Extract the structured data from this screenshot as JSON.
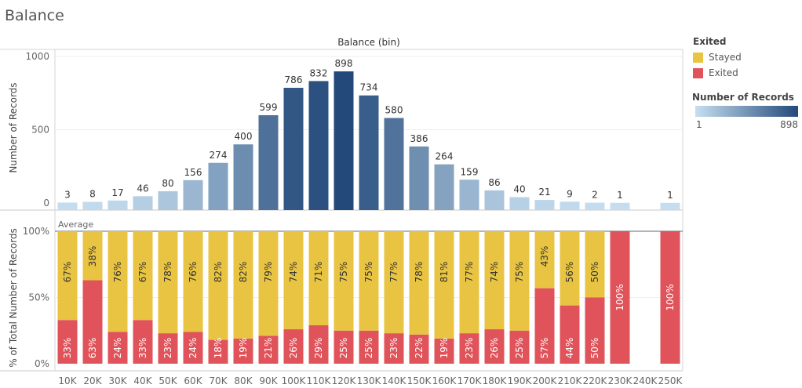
{
  "page_title": "Balance",
  "legend": {
    "title": "Exited",
    "items": [
      {
        "label": "Stayed",
        "color": "#e9c442"
      },
      {
        "label": "Exited",
        "color": "#e0535a"
      }
    ],
    "ramp_title": "Number of Records",
    "ramp_min": "1",
    "ramp_max": "898",
    "ramp_colors": [
      "#c6def0",
      "#23497a"
    ]
  },
  "chart_data": [
    {
      "type": "bar",
      "title": "Balance (bin)",
      "xlabel": "Balance (bin)",
      "ylabel": "Number of Records",
      "ylim": [
        0,
        1000
      ],
      "yticks": [
        "0",
        "500",
        "1000"
      ],
      "categories": [
        "10K",
        "20K",
        "30K",
        "40K",
        "50K",
        "60K",
        "70K",
        "80K",
        "90K",
        "100K",
        "110K",
        "120K",
        "130K",
        "140K",
        "150K",
        "160K",
        "170K",
        "180K",
        "190K",
        "200K",
        "210K",
        "220K",
        "230K",
        "240K",
        "250K"
      ],
      "values": [
        3,
        8,
        17,
        46,
        80,
        156,
        274,
        400,
        599,
        786,
        832,
        898,
        734,
        580,
        386,
        264,
        159,
        86,
        40,
        21,
        9,
        2,
        1,
        null,
        1
      ],
      "labels": [
        "3",
        "8",
        "17",
        "46",
        "80",
        "156",
        "274",
        "400",
        "599",
        "786",
        "832",
        "898",
        "734",
        "580",
        "386",
        "264",
        "159",
        "86",
        "40",
        "21",
        "9",
        "2",
        "1",
        "",
        "1"
      ],
      "color_scale": "sequential blue by Number of Records",
      "grid": true
    },
    {
      "type": "bar",
      "stacked": true,
      "ylabel": "% of Total Number of Records",
      "ylim": [
        0,
        100
      ],
      "yticks": [
        "0%",
        "50%",
        "100%"
      ],
      "reference_line": {
        "label": "Average",
        "value": 100
      },
      "categories": [
        "10K",
        "20K",
        "30K",
        "40K",
        "50K",
        "60K",
        "70K",
        "80K",
        "90K",
        "100K",
        "110K",
        "120K",
        "130K",
        "140K",
        "150K",
        "160K",
        "170K",
        "180K",
        "190K",
        "200K",
        "210K",
        "220K",
        "230K",
        "240K",
        "250K"
      ],
      "series": [
        {
          "name": "Exited",
          "color": "#e0535a",
          "values": [
            33,
            63,
            24,
            33,
            23,
            24,
            18,
            19,
            21,
            26,
            29,
            25,
            25,
            23,
            22,
            19,
            23,
            26,
            25,
            57,
            44,
            50,
            100,
            null,
            100
          ],
          "labels": [
            "33%",
            "63%",
            "24%",
            "33%",
            "23%",
            "24%",
            "18%",
            "19%",
            "21%",
            "26%",
            "29%",
            "25%",
            "25%",
            "23%",
            "22%",
            "19%",
            "23%",
            "26%",
            "25%",
            "57%",
            "44%",
            "50%",
            "100%",
            "",
            "100%"
          ]
        },
        {
          "name": "Stayed",
          "color": "#e9c442",
          "values": [
            67,
            38,
            76,
            67,
            78,
            76,
            82,
            82,
            79,
            74,
            71,
            75,
            75,
            77,
            78,
            81,
            77,
            74,
            75,
            43,
            56,
            50,
            0,
            null,
            0
          ],
          "labels": [
            "67%",
            "38%",
            "76%",
            "67%",
            "78%",
            "76%",
            "82%",
            "82%",
            "79%",
            "74%",
            "71%",
            "75%",
            "75%",
            "77%",
            "78%",
            "81%",
            "77%",
            "74%",
            "75%",
            "43%",
            "56%",
            "50%",
            "",
            "",
            ""
          ]
        }
      ],
      "grid": true
    }
  ]
}
